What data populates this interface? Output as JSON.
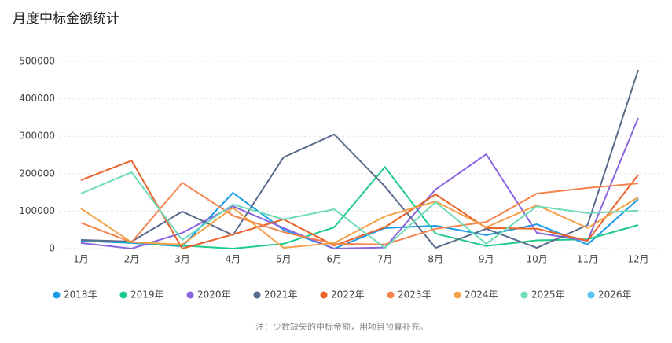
{
  "chart_data": {
    "type": "line",
    "title": "月度中标金额统计",
    "categories": [
      "1月",
      "2月",
      "3月",
      "4月",
      "5月",
      "6月",
      "7月",
      "8月",
      "9月",
      "10月",
      "11月",
      "12月"
    ],
    "series": [
      {
        "name": "2018年",
        "color": "#1a9be8",
        "values": [
          21000,
          15000,
          6000,
          149000,
          50000,
          0,
          55000,
          61000,
          36000,
          65000,
          11000,
          132000
        ]
      },
      {
        "name": "2019年",
        "color": "#1ccb8a",
        "values": [
          23000,
          17000,
          8000,
          0,
          13000,
          57000,
          218000,
          40000,
          7000,
          22000,
          25000,
          63000
        ]
      },
      {
        "name": "2020年",
        "color": "#8b64e0",
        "values": [
          15000,
          0,
          42000,
          113000,
          55000,
          0,
          3000,
          158000,
          252000,
          42000,
          21000,
          349000
        ]
      },
      {
        "name": "2021年",
        "color": "#5a6b8c",
        "values": [
          23000,
          19000,
          99000,
          36000,
          244000,
          305000,
          166000,
          2000,
          53000,
          2000,
          63000,
          477000
        ]
      },
      {
        "name": "2022年",
        "color": "#e8622a",
        "values": [
          183000,
          235000,
          0,
          38000,
          78000,
          8000,
          57000,
          145000,
          55000,
          53000,
          21000,
          197000
        ]
      },
      {
        "name": "2023年",
        "color": "#f5844f",
        "values": [
          69000,
          17000,
          176000,
          88000,
          44000,
          13000,
          11000,
          53000,
          71000,
          147000,
          162000,
          174000
        ]
      },
      {
        "name": "2024年",
        "color": "#f5a14a",
        "values": [
          107000,
          17000,
          11000,
          109000,
          2000,
          15000,
          86000,
          126000,
          57000,
          116000,
          55000,
          137000
        ]
      },
      {
        "name": "2025年",
        "color": "#6edcb8",
        "values": [
          147000,
          204000,
          23000,
          118000,
          78000,
          105000,
          2000,
          124000,
          13000,
          113000,
          95000,
          101000
        ]
      },
      {
        "name": "2026年",
        "color": "#5bc4f5",
        "values": [
          null,
          null,
          null,
          null,
          null,
          null,
          null,
          null,
          null,
          null,
          null,
          null
        ]
      }
    ],
    "ylim": [
      0,
      500000
    ],
    "yticks": [
      0,
      100000,
      200000,
      300000,
      400000,
      500000
    ],
    "grid": true,
    "note": "注：少数缺失的中标金额，用项目预算补充。"
  }
}
